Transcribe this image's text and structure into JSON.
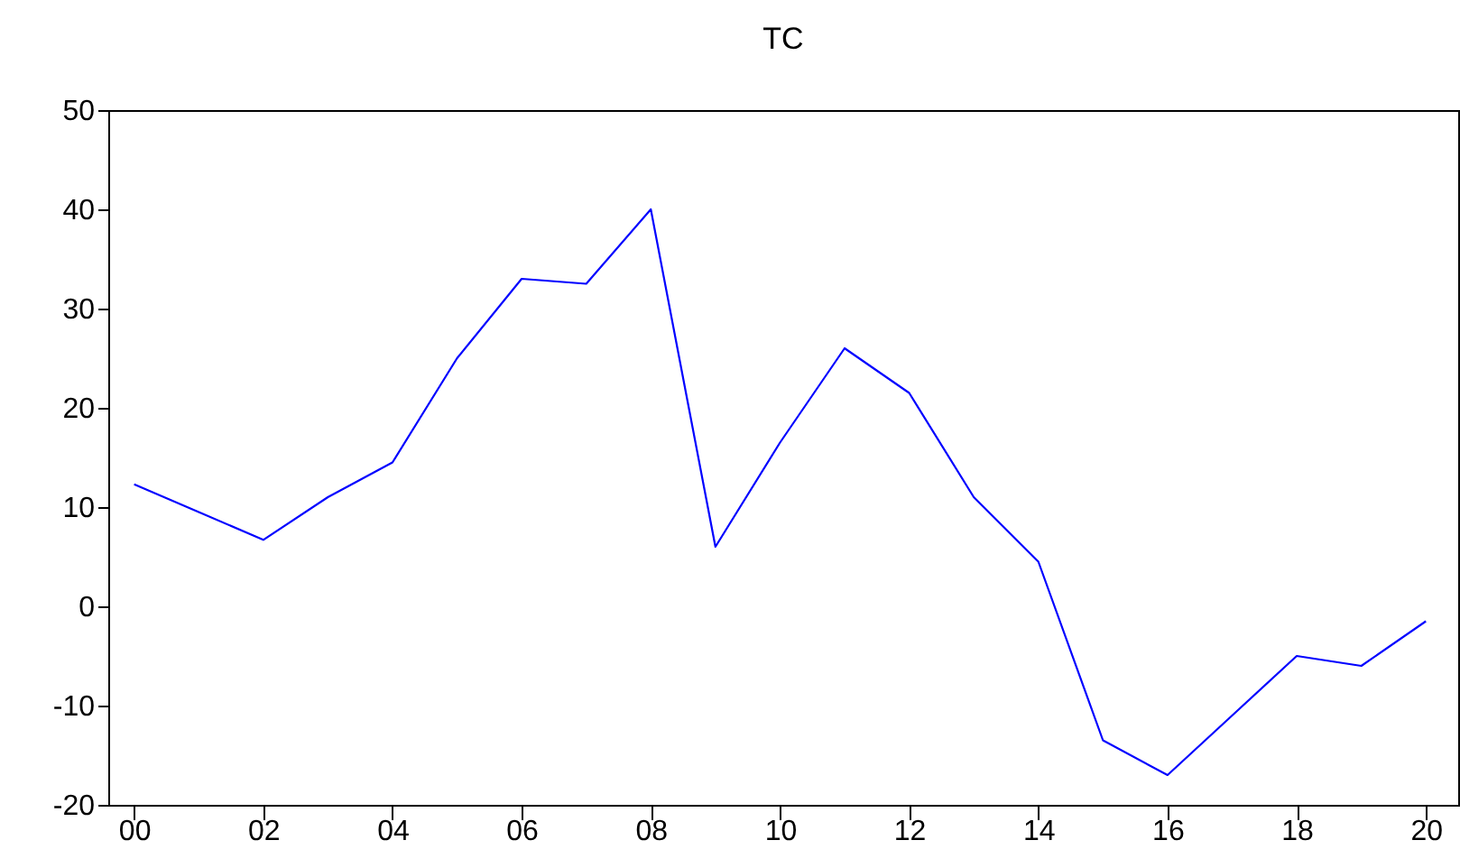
{
  "chart_data": {
    "type": "line",
    "title": "TC",
    "x": [
      2000,
      2001,
      2002,
      2003,
      2004,
      2005,
      2006,
      2007,
      2008,
      2009,
      2010,
      2011,
      2012,
      2013,
      2014,
      2015,
      2016,
      2017,
      2018,
      2019,
      2020
    ],
    "series": [
      {
        "color": "#0000ff",
        "values": [
          12.3,
          9.5,
          6.7,
          11,
          14.5,
          25,
          33,
          32.5,
          40,
          6,
          16.5,
          26,
          21.5,
          11,
          4.5,
          -13.5,
          -17,
          -11,
          -5,
          -6,
          -1.5
        ]
      }
    ],
    "xlim": [
      1999.6,
      2020.5
    ],
    "ylim": [
      -20,
      50
    ],
    "xticks": [
      {
        "value": 2000,
        "label": "00"
      },
      {
        "value": 2002,
        "label": "02"
      },
      {
        "value": 2004,
        "label": "04"
      },
      {
        "value": 2006,
        "label": "06"
      },
      {
        "value": 2008,
        "label": "08"
      },
      {
        "value": 2010,
        "label": "10"
      },
      {
        "value": 2012,
        "label": "12"
      },
      {
        "value": 2014,
        "label": "14"
      },
      {
        "value": 2016,
        "label": "16"
      },
      {
        "value": 2018,
        "label": "18"
      },
      {
        "value": 2020,
        "label": "20"
      }
    ],
    "yticks": [
      -20,
      -10,
      0,
      10,
      20,
      30,
      40,
      50
    ],
    "grid": false,
    "legend": false,
    "marker": "none",
    "line_style": "solid"
  }
}
